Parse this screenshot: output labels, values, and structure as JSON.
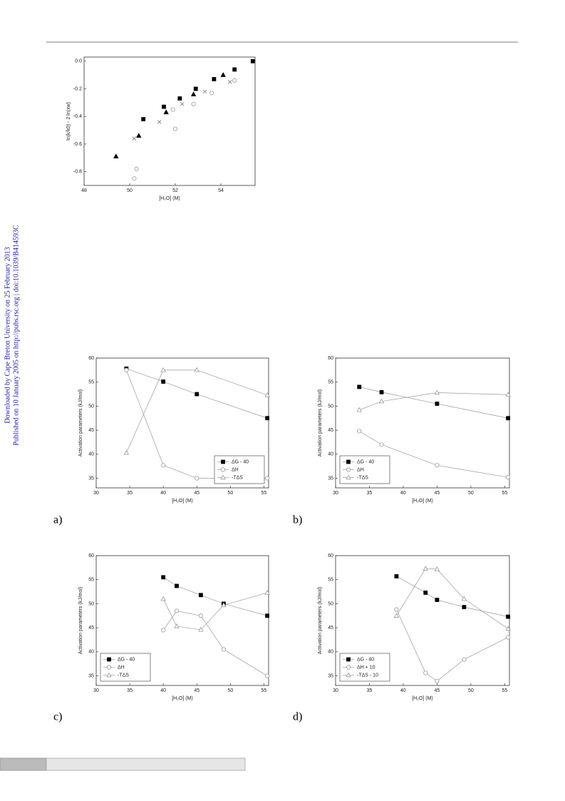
{
  "sidebar": [
    "Downloaded by Cape Breton University on 25 February 2013",
    "Published on 10 January 2005 on http://pubs.rsc.org | doi:10.1039/B414593C"
  ],
  "chart_data": [
    {
      "type": "scatter",
      "xlabel": "[H₂O] (M)",
      "ylabel": "ln(k/k0) - 2 ln(xw)",
      "xlim": [
        48,
        55.5
      ],
      "xticks": [
        48,
        50,
        52,
        54
      ],
      "ylim": [
        -0.9,
        0.03
      ],
      "yticks": [
        {
          "value": 0,
          "label": "0.0"
        },
        -0.2,
        -0.4,
        -0.6,
        -0.8
      ],
      "series": [
        {
          "marker": "square",
          "color": "#000",
          "filled": true,
          "x": [
            50.6,
            51.5,
            52.2,
            52.9,
            53.7,
            54.6,
            55.4
          ],
          "values": [
            -0.42,
            -0.33,
            -0.27,
            -0.2,
            -0.13,
            -0.06,
            0
          ]
        },
        {
          "marker": "triangle",
          "color": "#000",
          "filled": true,
          "x": [
            49.4,
            50.4,
            51.6,
            52.8,
            54.1
          ],
          "values": [
            -0.69,
            -0.54,
            -0.37,
            -0.24,
            -0.1
          ]
        },
        {
          "marker": "cross",
          "color": "#777",
          "filled": false,
          "x": [
            50.2,
            51.3,
            52.3,
            53.3,
            54.4
          ],
          "values": [
            -0.56,
            -0.44,
            -0.31,
            -0.22,
            -0.15
          ]
        },
        {
          "marker": "circle",
          "color": "#999",
          "filled": false,
          "x": [
            50.3,
            50.2,
            52.0,
            51.9,
            52.8,
            53.6,
            54.6
          ],
          "values": [
            -0.78,
            -0.85,
            -0.49,
            -0.35,
            -0.31,
            -0.23,
            -0.14
          ]
        }
      ]
    },
    {
      "type": "line",
      "label": "a)",
      "xlabel": "[H₂O] (M)",
      "ylabel": "Activation parameters (kJ/mol)",
      "xlim": [
        30,
        55.7
      ],
      "xticks": [
        30,
        35,
        40,
        45,
        50,
        55
      ],
      "ylim": [
        33,
        60
      ],
      "yticks": [
        35,
        40,
        45,
        50,
        55,
        60
      ],
      "legend": "lower right",
      "series": [
        {
          "name": "ΔG - 40",
          "marker": "square",
          "color": "#000",
          "filled": true,
          "x": [
            34.5,
            40,
            45,
            55.5
          ],
          "values": [
            57.8,
            55.1,
            52.5,
            47.5
          ]
        },
        {
          "name": "ΔH",
          "marker": "circle",
          "color": "#999",
          "filled": false,
          "x": [
            34.5,
            40,
            45,
            55.5
          ],
          "values": [
            57.5,
            37.7,
            35,
            35
          ]
        },
        {
          "name": "-TΔS",
          "marker": "triangle",
          "color": "#999",
          "filled": false,
          "x": [
            34.5,
            40,
            45,
            55.5
          ],
          "values": [
            40.3,
            57.5,
            57.5,
            52.3
          ]
        }
      ]
    },
    {
      "type": "line",
      "label": "b)",
      "xlabel": "[H₂O] (M)",
      "ylabel": "Activation parameters (kJ/mol)",
      "xlim": [
        30,
        55.7
      ],
      "xticks": [
        30,
        35,
        40,
        45,
        50,
        55
      ],
      "ylim": [
        33,
        60
      ],
      "yticks": [
        35,
        40,
        45,
        50,
        55,
        60
      ],
      "legend": "lower left",
      "series": [
        {
          "name": "ΔG - 40",
          "marker": "square",
          "color": "#000",
          "filled": true,
          "x": [
            33.5,
            36.8,
            45,
            55.5
          ],
          "values": [
            54,
            52.9,
            50.5,
            47.5
          ]
        },
        {
          "name": "ΔH",
          "marker": "circle",
          "color": "#999",
          "filled": false,
          "x": [
            33.5,
            36.8,
            45,
            55.5
          ],
          "values": [
            44.8,
            42,
            37.7,
            35.2
          ]
        },
        {
          "name": "-TΔS",
          "marker": "triangle",
          "color": "#999",
          "filled": false,
          "x": [
            33.5,
            36.8,
            45,
            55.5
          ],
          "values": [
            49.2,
            51,
            52.8,
            52.4
          ]
        }
      ]
    },
    {
      "type": "line",
      "label": "c)",
      "xlabel": "[H₂O] (M)",
      "ylabel": "Activation parameters (kJ/mol)",
      "xlim": [
        30,
        55.7
      ],
      "xticks": [
        30,
        35,
        40,
        45,
        50,
        55
      ],
      "ylim": [
        33,
        60
      ],
      "yticks": [
        35,
        40,
        45,
        50,
        55,
        60
      ],
      "legend": "lower left",
      "series": [
        {
          "name": "ΔG - 40",
          "marker": "square",
          "color": "#000",
          "filled": true,
          "x": [
            40,
            42,
            45.6,
            49,
            55.5
          ],
          "values": [
            55.5,
            53.7,
            51.8,
            50,
            47.5
          ]
        },
        {
          "name": "ΔH",
          "marker": "circle",
          "color": "#999",
          "filled": false,
          "x": [
            40,
            42,
            45.6,
            49,
            55.5
          ],
          "values": [
            44.5,
            48.5,
            47.5,
            40.5,
            35
          ]
        },
        {
          "name": "-TΔS",
          "marker": "triangle",
          "color": "#999",
          "filled": false,
          "x": [
            40,
            42,
            45.6,
            49,
            55.5
          ],
          "values": [
            51,
            45.3,
            44.6,
            49.7,
            52.3
          ]
        }
      ]
    },
    {
      "type": "line",
      "label": "d)",
      "xlabel": "[H₂O] (M)",
      "ylabel": "Activation parameters (kJ/mol)",
      "xlim": [
        30,
        55.7
      ],
      "xticks": [
        30,
        35,
        40,
        45,
        50,
        55
      ],
      "ylim": [
        33,
        60
      ],
      "yticks": [
        35,
        40,
        45,
        50,
        55,
        60
      ],
      "legend": "lower left",
      "series": [
        {
          "name": "ΔG - 40",
          "marker": "square",
          "color": "#000",
          "filled": true,
          "x": [
            39,
            43.3,
            45,
            49,
            55.5
          ],
          "values": [
            55.7,
            52.3,
            50.8,
            49.3,
            47.3
          ]
        },
        {
          "name": "ΔH + 10",
          "marker": "circle",
          "color": "#999",
          "filled": false,
          "x": [
            39,
            43.3,
            45,
            49,
            55.5
          ],
          "values": [
            48.8,
            35.6,
            33.9,
            38.4,
            43
          ]
        },
        {
          "name": "-TΔS - 10",
          "marker": "triangle",
          "color": "#999",
          "filled": false,
          "x": [
            39,
            43.3,
            45,
            49,
            55.5
          ],
          "values": [
            47.5,
            57.3,
            57.2,
            51,
            44.8
          ]
        }
      ]
    }
  ]
}
